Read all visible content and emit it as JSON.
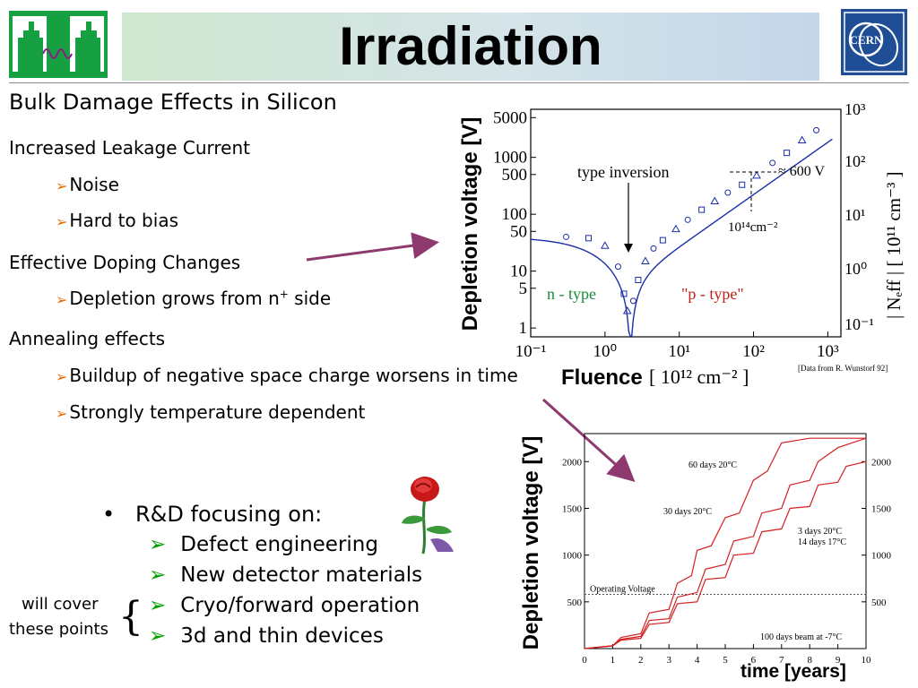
{
  "slide": {
    "title": "Irradiation",
    "heading": "Bulk Damage Effects in Silicon",
    "bullets": {
      "leakage": "Increased Leakage Current",
      "noise": "Noise",
      "bias": "Hard to bias",
      "doping": "Effective Doping Changes",
      "depletion_pre": "Depletion grows from n",
      "depletion_sup": "+",
      "depletion_post": " side",
      "annealing": "Annealing effects",
      "buildup": "Buildup of negative space charge worsens in time",
      "temp": "Strongly temperature dependent"
    },
    "rd": {
      "bullet": "•",
      "heading": "R&D focusing on:",
      "items": [
        "Defect engineering",
        "New detector materials",
        "Cryo/forward operation",
        "3d and thin devices"
      ]
    },
    "note": {
      "line1": "will cover",
      "line2": "these points"
    },
    "logos": {
      "cern": "CERN"
    },
    "colors": {
      "accent_arrow": "#8e3a6f",
      "bullet_arrow": "#e36c0a",
      "rd_arrow": "#00a000",
      "curve_blue": "#1a2ea8",
      "curve_red": "#d42020"
    }
  },
  "chart1_labels": {
    "ylabel": "Depletion voltage [V]",
    "xlabel_word": "Fluence",
    "xlabel_unit": "[ 10¹² cm⁻² ]",
    "ylabel_right": "| Nₑff | [ 10¹¹ cm⁻³ ]",
    "annot_inversion": "type inversion",
    "annot_600": "≈ 600 V",
    "annot_fluence": "10¹⁴cm⁻²",
    "region_n": "n - type",
    "region_p": "\"p - type\"",
    "source": "[Data from R. Wunstorf 92]",
    "yticks": [
      "5000",
      "1000",
      "500",
      "100",
      "50",
      "10",
      "5",
      "1"
    ],
    "xticks": [
      "10⁻¹",
      "10⁰",
      "10¹",
      "10²",
      "10³"
    ],
    "rticks": [
      "10³",
      "10²",
      "10¹",
      "10⁰",
      "10⁻¹"
    ]
  },
  "chart2_labels": {
    "ylabel": "Depletion voltage [V]",
    "xlabel": "time [years]",
    "op_voltage": "Operating Voltage",
    "ann_60": "60 days 20°C",
    "ann_30": "30 days 20°C",
    "ann_3": "3 days 20°C",
    "ann_14": "14 days 17°C",
    "ann_beam": "100 days beam at -7°C",
    "yticks": [
      "2000",
      "1500",
      "1000",
      "500"
    ],
    "xticks": [
      "0",
      "1",
      "2",
      "3",
      "4",
      "5",
      "6",
      "7",
      "8",
      "9",
      "10"
    ]
  },
  "chart_data": [
    {
      "type": "scatter",
      "title": "",
      "xlabel": "Fluence [10^12 cm^-2]",
      "ylabel": "Depletion voltage [V]",
      "y2label": "|N_eff| [10^11 cm^-3]",
      "xscale": "log",
      "yscale": "log",
      "xlim": [
        0.1,
        1500
      ],
      "ylim": [
        0.7,
        7000
      ],
      "series": [
        {
          "x": [
            0.3,
            0.6,
            1.0,
            1.5,
            1.8,
            2.0,
            2.4,
            2.8,
            3.5,
            4.5,
            6,
            9,
            13,
            20,
            30,
            45,
            70,
            110,
            180,
            280,
            450,
            700
          ],
          "y": [
            40,
            38,
            28,
            12,
            4,
            2,
            3,
            7,
            15,
            25,
            35,
            55,
            80,
            120,
            170,
            240,
            330,
            480,
            800,
            1200,
            2000,
            3000
          ]
        }
      ],
      "annotations": [
        "type inversion",
        "≈ 600 V",
        "10^14 cm^-2",
        "n - type",
        "\"p - type\""
      ]
    },
    {
      "type": "line",
      "title": "",
      "xlabel": "time [years]",
      "ylabel": "Depletion voltage [V]",
      "xlim": [
        0,
        10
      ],
      "ylim": [
        0,
        2300
      ],
      "series": [
        {
          "x": [
            0,
            1,
            1.3,
            2,
            2.3,
            3,
            3.3,
            3.8,
            4,
            4.5,
            5,
            5.5,
            6,
            6.5,
            7,
            8,
            9,
            10
          ],
          "y": [
            0,
            30,
            120,
            160,
            380,
            420,
            700,
            780,
            1050,
            1100,
            1400,
            1450,
            1800,
            1900,
            2200,
            2250,
            2250,
            2250
          ]
        },
        {
          "x": [
            0,
            1,
            1.3,
            2,
            2.3,
            3,
            3.3,
            4,
            4.3,
            5,
            5.3,
            6,
            6.3,
            7,
            7.3,
            8,
            8.3,
            9,
            10
          ],
          "y": [
            0,
            30,
            100,
            130,
            300,
            320,
            550,
            600,
            850,
            900,
            1150,
            1200,
            1450,
            1500,
            1750,
            1800,
            2000,
            2150,
            2250
          ]
        },
        {
          "x": [
            0,
            1,
            1.3,
            2,
            2.3,
            3,
            3.3,
            4,
            4.3,
            5,
            5.3,
            6,
            6.3,
            7,
            7.3,
            8,
            8.3,
            9,
            9.3,
            10
          ],
          "y": [
            0,
            30,
            90,
            110,
            260,
            280,
            480,
            500,
            740,
            760,
            1000,
            1020,
            1250,
            1280,
            1500,
            1520,
            1750,
            1780,
            1950,
            2000
          ]
        }
      ],
      "reference_line": {
        "label": "Operating Voltage",
        "y": 580
      },
      "annotations": [
        "60 days 20°C",
        "30 days 20°C",
        "3 days 20°C",
        "14 days 17°C",
        "100 days beam at -7°C"
      ]
    }
  ]
}
